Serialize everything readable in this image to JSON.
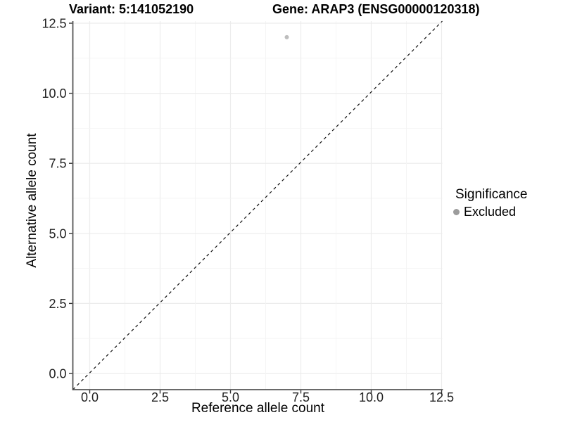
{
  "figure": {
    "title_left": "Variant: 5:141052190",
    "title_right": "Gene: ARAP3 (ENSG00000120318)"
  },
  "chart_data": {
    "type": "scatter",
    "titles": [
      "Variant: 5:141052190",
      "Gene: ARAP3 (ENSG00000120318)"
    ],
    "xlabel": "Reference allele count",
    "ylabel": "Alternative allele count",
    "xlim": [
      -0.6,
      12.55
    ],
    "ylim": [
      -0.6,
      12.6
    ],
    "x_ticks": {
      "values": [
        0,
        2.5,
        5,
        7.5,
        10,
        12.5
      ],
      "labels": [
        "0.0",
        "2.5",
        "5.0",
        "7.5",
        "10.0",
        "12.5"
      ]
    },
    "y_ticks": {
      "values": [
        0,
        2.5,
        5,
        7.5,
        10,
        12.5
      ],
      "labels": [
        "0.0",
        "2.5",
        "5.0",
        "7.5",
        "10.0",
        "12.5"
      ]
    },
    "minor_grid_step": 1.25,
    "grid": "major and minor light-gray gridlines on white panel",
    "series": [
      {
        "name": "Excluded",
        "marker": "circle",
        "color": "#bdbdbd",
        "points": [
          [
            7,
            12
          ]
        ]
      }
    ],
    "reference_line": {
      "kind": "identity y=x",
      "style": "dashed",
      "color": "#111111",
      "from": [
        -0.6,
        -0.6
      ],
      "to": [
        12.6,
        12.6
      ]
    },
    "legend": {
      "title": "Significance",
      "position": "right",
      "items": [
        {
          "label": "Excluded",
          "marker_color": "#9c9c9c"
        }
      ]
    },
    "colors": {
      "axis_line": "#545454",
      "tick_mark": "#333333",
      "tick_label": "#212121",
      "grid_major": "#ececec",
      "grid_minor": "#f4f4f4",
      "background": "#ffffff"
    }
  }
}
